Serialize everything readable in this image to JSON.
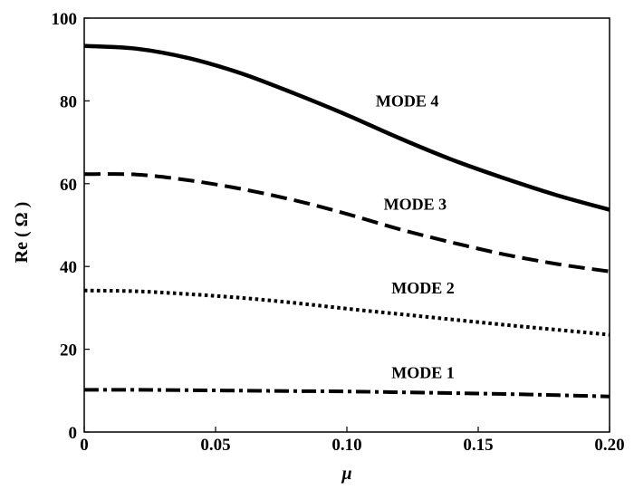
{
  "chart_data": {
    "type": "line",
    "title": "",
    "xlabel": "μ",
    "ylabel": "Re ( Ω )",
    "xlim": [
      0,
      0.2
    ],
    "ylim": [
      0,
      100
    ],
    "x_ticks": [
      {
        "value": 0,
        "label": "0"
      },
      {
        "value": 0.05,
        "label": "0.05"
      },
      {
        "value": 0.1,
        "label": "0.10"
      },
      {
        "value": 0.15,
        "label": "0.15"
      },
      {
        "value": 0.2,
        "label": "0.20"
      }
    ],
    "y_ticks": [
      {
        "value": 0,
        "label": "0"
      },
      {
        "value": 20,
        "label": "20"
      },
      {
        "value": 40,
        "label": "40"
      },
      {
        "value": 60,
        "label": "60"
      },
      {
        "value": 80,
        "label": "80"
      },
      {
        "value": 100,
        "label": "100"
      }
    ],
    "grid": false,
    "series": [
      {
        "name": "MODE 1",
        "line_style": "dash-dot",
        "label_at": [
          0.117,
          13
        ],
        "x": [
          0,
          0.02,
          0.04,
          0.06,
          0.08,
          0.1,
          0.12,
          0.14,
          0.16,
          0.18,
          0.2
        ],
        "y": [
          10.2,
          10.2,
          10.1,
          10.0,
          9.9,
          9.8,
          9.6,
          9.4,
          9.2,
          8.9,
          8.6
        ]
      },
      {
        "name": "MODE 2",
        "line_style": "dotted",
        "label_at": [
          0.117,
          33.5
        ],
        "x": [
          0,
          0.02,
          0.04,
          0.06,
          0.08,
          0.1,
          0.12,
          0.14,
          0.16,
          0.18,
          0.2
        ],
        "y": [
          34.2,
          34.0,
          33.3,
          32.4,
          31.2,
          29.8,
          28.5,
          27.2,
          25.9,
          24.7,
          23.5
        ]
      },
      {
        "name": "MODE 3",
        "line_style": "dashed",
        "label_at": [
          0.114,
          53.7
        ],
        "x": [
          0,
          0.02,
          0.04,
          0.06,
          0.08,
          0.1,
          0.12,
          0.14,
          0.16,
          0.18,
          0.2
        ],
        "y": [
          62.3,
          62.2,
          60.8,
          58.7,
          56.0,
          52.7,
          49.0,
          45.8,
          42.9,
          40.6,
          38.8
        ]
      },
      {
        "name": "MODE 4",
        "line_style": "solid",
        "label_at": [
          0.111,
          78.7
        ],
        "x": [
          0,
          0.02,
          0.04,
          0.06,
          0.08,
          0.1,
          0.12,
          0.14,
          0.16,
          0.18,
          0.2
        ],
        "y": [
          93.3,
          92.6,
          90.3,
          86.6,
          81.8,
          76.6,
          71.0,
          65.8,
          61.3,
          57.2,
          53.7
        ]
      }
    ]
  }
}
